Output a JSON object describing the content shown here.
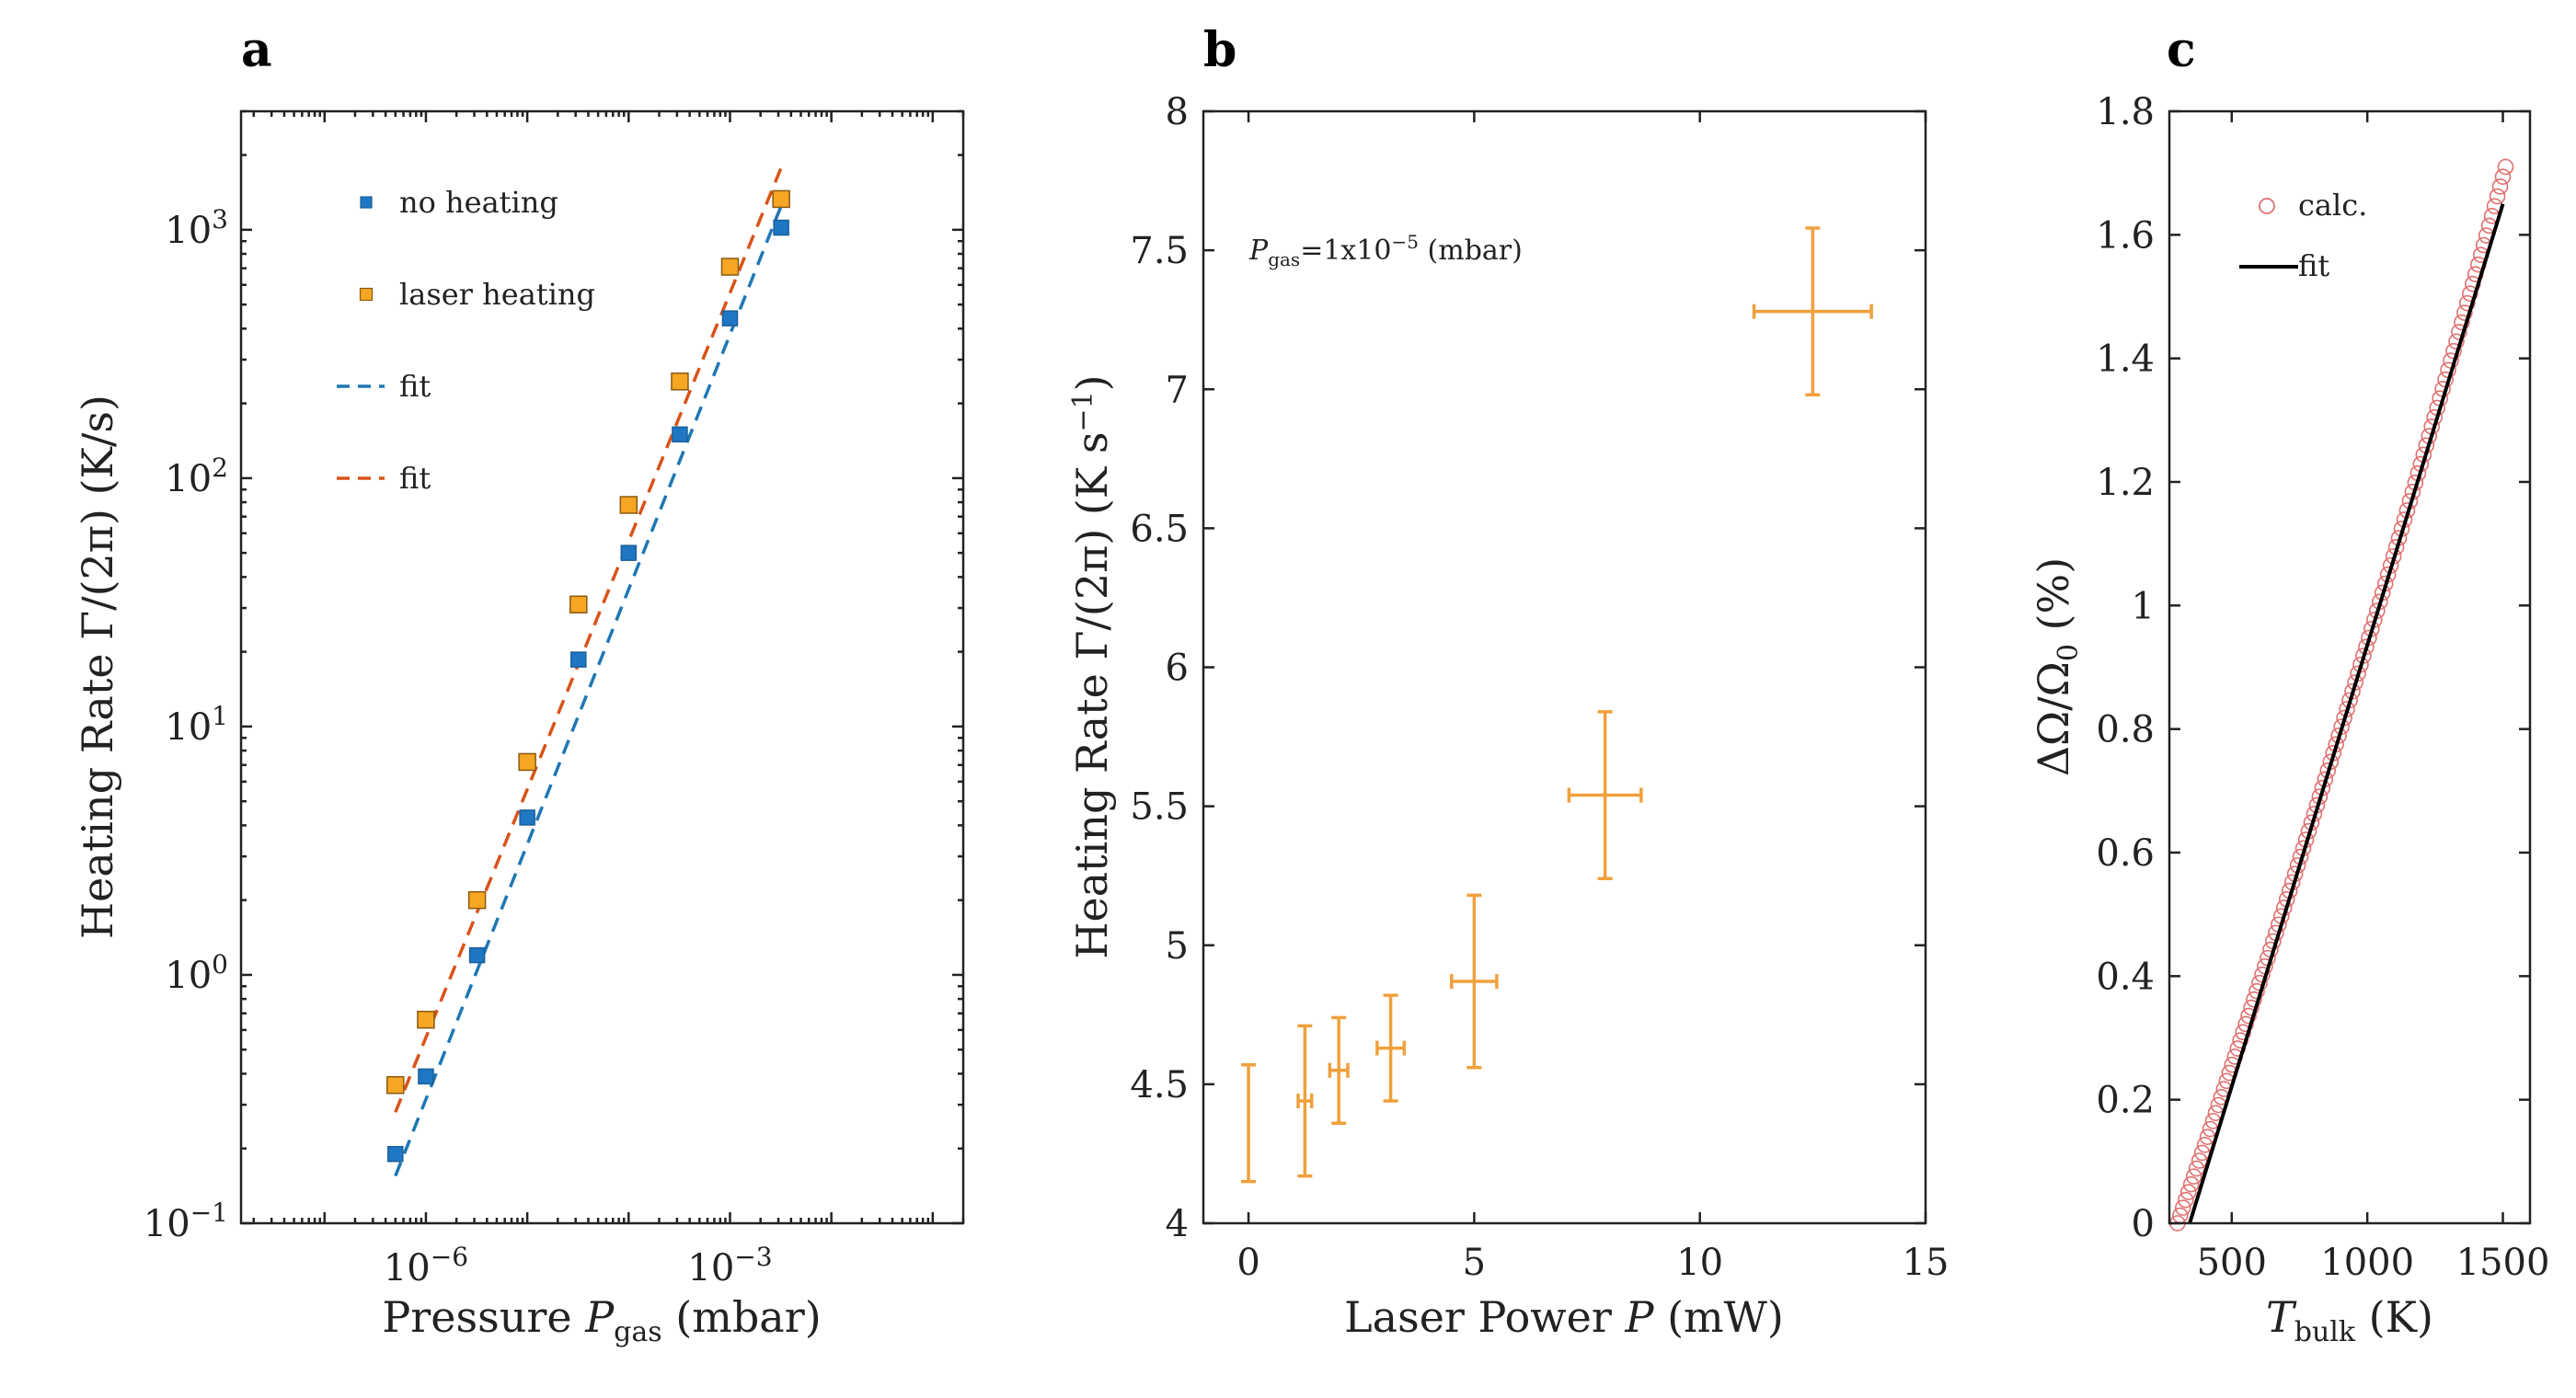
{
  "chart_data": [
    {
      "type": "scatter",
      "panel": "a",
      "x_scale": "log",
      "y_scale": "log",
      "xlabel": "Pressure ",
      "xlabel_italic": "P",
      "xlabel_sub": "gas",
      "xlabel_unit": " (mbar)",
      "ylabel": "Heating Rate Γ/(2π) (K/s)",
      "xlim": [
        1.5e-08,
        0.2
      ],
      "ylim": [
        0.1,
        3000
      ],
      "x_ticks": [
        {
          "value": 1e-06,
          "base": "10",
          "exp": "−6"
        },
        {
          "value": 0.001,
          "base": "10",
          "exp": "−3"
        }
      ],
      "y_ticks": [
        {
          "value": 0.1,
          "base": "10",
          "exp": "−1"
        },
        {
          "value": 1,
          "base": "10",
          "exp": "0"
        },
        {
          "value": 10,
          "base": "10",
          "exp": "1"
        },
        {
          "value": 100,
          "base": "10",
          "exp": "2"
        },
        {
          "value": 1000,
          "base": "10",
          "exp": "3"
        }
      ],
      "series": [
        {
          "name": "no heating",
          "marker": "square",
          "color": "#1f77c4",
          "x": [
            5e-07,
            1e-06,
            3.2e-06,
            1e-05,
            3.2e-05,
            0.0001,
            0.00032,
            0.001,
            0.0032
          ],
          "y": [
            0.19,
            0.39,
            1.2,
            4.3,
            18.6,
            50,
            150,
            440,
            1020
          ]
        },
        {
          "name": "laser heating",
          "marker": "square",
          "color": "#f5a623",
          "x": [
            5e-07,
            1e-06,
            3.2e-06,
            1e-05,
            3.2e-05,
            0.0001,
            0.00032,
            0.001,
            0.0032
          ],
          "y": [
            0.36,
            0.66,
            2.0,
            7.2,
            31,
            78,
            245,
            710,
            1330
          ]
        },
        {
          "name": "fit",
          "line": "dashed",
          "color": "#1f77b4",
          "x": [
            5e-07,
            0.0032
          ],
          "y": [
            0.155,
            1250
          ]
        },
        {
          "name": "fit",
          "line": "dashed",
          "color": "#d95319",
          "x": [
            5e-07,
            0.0032
          ],
          "y": [
            0.28,
            1780
          ]
        }
      ]
    },
    {
      "type": "errorbar",
      "panel": "b",
      "xlabel": "Laser Power ",
      "xlabel_italic": "P",
      "xlabel_unit": " (mW)",
      "ylabel": "Heating Rate Γ/(2π) (K s",
      "ylabel_sup": "−1",
      "ylabel_end": ")",
      "annotation": {
        "italic": "P",
        "sub": "gas",
        "text": "=1x10",
        "sup": "−5",
        "end": " (mbar)"
      },
      "xlim": [
        -1.0,
        15
      ],
      "ylim": [
        4,
        8
      ],
      "x_ticks": [
        0,
        5,
        10,
        15
      ],
      "y_ticks": [
        4,
        4.5,
        5,
        5.5,
        6,
        6.5,
        7,
        7.5,
        8
      ],
      "y_tick_labels": [
        "4",
        "4.5",
        "5",
        "5.5",
        "6",
        "6.5",
        "7",
        "7.5",
        "8"
      ],
      "color": "#f0a03c",
      "points": [
        {
          "x": 0,
          "y": 4.36,
          "xerr": 0,
          "yerr": 0.21
        },
        {
          "x": 1.25,
          "y": 4.44,
          "xerr": 0.15,
          "yerr": 0.27
        },
        {
          "x": 2.0,
          "y": 4.55,
          "xerr": 0.2,
          "yerr": 0.19
        },
        {
          "x": 3.15,
          "y": 4.63,
          "xerr": 0.3,
          "yerr": 0.19
        },
        {
          "x": 5.0,
          "y": 4.87,
          "xerr": 0.5,
          "yerr": 0.31
        },
        {
          "x": 7.9,
          "y": 5.54,
          "xerr": 0.8,
          "yerr": 0.3
        },
        {
          "x": 12.5,
          "y": 7.28,
          "xerr": 1.3,
          "yerr": 0.3
        }
      ]
    },
    {
      "type": "scatter",
      "panel": "c",
      "xlabel_italic": "T",
      "xlabel_sub": "bulk",
      "xlabel_unit": " (K)",
      "ylabel": "ΔΩ/Ω",
      "ylabel_sub": "0",
      "ylabel_unit": " (%)",
      "xlim": [
        270,
        1600
      ],
      "ylim": [
        0,
        1.8
      ],
      "x_ticks": [
        500,
        1000,
        1500
      ],
      "x_tick_labels": [
        "500",
        "1000",
        "1500"
      ],
      "y_ticks": [
        0,
        0.2,
        0.4,
        0.6,
        0.8,
        1,
        1.2,
        1.4,
        1.6,
        1.8
      ],
      "y_tick_labels": [
        "0",
        "0.2",
        "0.4",
        "0.6",
        "0.8",
        "1",
        "1.2",
        "1.4",
        "1.6",
        "1.8"
      ],
      "series": [
        {
          "name": "calc.",
          "marker": "open-circle",
          "color": "#e07070",
          "x_range": [
            300,
            1510
          ],
          "y_at_start": 0.0,
          "y_at_end": 1.71,
          "curvature": 0.06,
          "count": 121
        },
        {
          "name": "fit",
          "line": "solid",
          "color": "#000000",
          "x": [
            345,
            1500
          ],
          "y": [
            0.0,
            1.65
          ]
        }
      ]
    }
  ]
}
